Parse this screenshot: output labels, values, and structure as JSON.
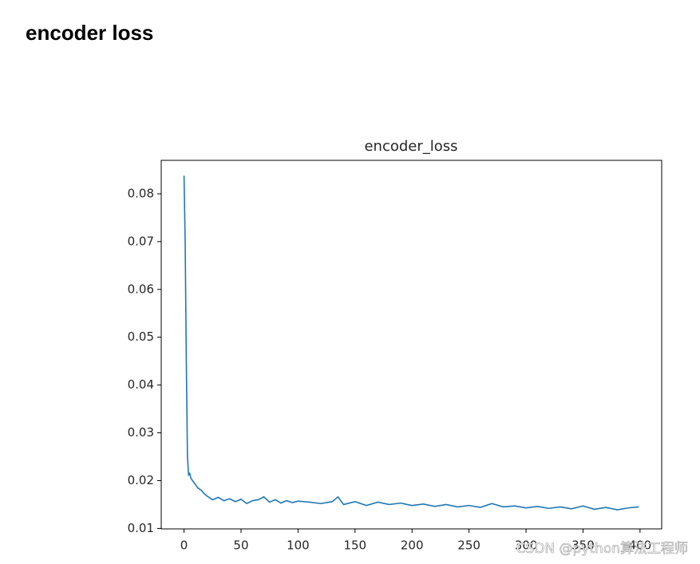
{
  "header": {
    "title": "encoder loss"
  },
  "watermark": "CSDN @python算法工程师",
  "chart_data": {
    "type": "line",
    "title": "encoder_loss",
    "x": [
      0,
      1,
      2,
      3,
      4,
      5,
      6,
      8,
      10,
      12,
      15,
      18,
      20,
      25,
      30,
      35,
      40,
      45,
      50,
      55,
      60,
      65,
      70,
      75,
      80,
      85,
      90,
      95,
      100,
      110,
      120,
      130,
      135,
      140,
      150,
      160,
      170,
      180,
      190,
      200,
      210,
      220,
      230,
      240,
      250,
      260,
      270,
      280,
      290,
      300,
      310,
      320,
      330,
      340,
      350,
      360,
      370,
      380,
      390,
      399
    ],
    "series": [
      {
        "name": "encoder_loss",
        "color": "#1f77b4",
        "values": [
          0.0838,
          0.07,
          0.045,
          0.025,
          0.0212,
          0.0215,
          0.0205,
          0.0198,
          0.0192,
          0.0185,
          0.018,
          0.0172,
          0.0168,
          0.016,
          0.0165,
          0.0158,
          0.0162,
          0.0156,
          0.0161,
          0.0152,
          0.0158,
          0.016,
          0.0166,
          0.0155,
          0.016,
          0.0153,
          0.0158,
          0.0154,
          0.0157,
          0.0155,
          0.0152,
          0.0156,
          0.0166,
          0.015,
          0.0156,
          0.0148,
          0.0155,
          0.015,
          0.0153,
          0.0148,
          0.0151,
          0.0146,
          0.015,
          0.0145,
          0.0148,
          0.0144,
          0.0152,
          0.0145,
          0.0147,
          0.0143,
          0.0146,
          0.0142,
          0.0145,
          0.0141,
          0.0147,
          0.014,
          0.0144,
          0.0139,
          0.0143,
          0.0145
        ]
      }
    ],
    "xlim": [
      -20,
      419
    ],
    "ylim": [
      0.0099,
      0.087
    ],
    "xticks": [
      0,
      50,
      100,
      150,
      200,
      250,
      300,
      350,
      400
    ],
    "yticks": [
      0.01,
      0.02,
      0.03,
      0.04,
      0.05,
      0.06,
      0.07,
      0.08
    ]
  }
}
